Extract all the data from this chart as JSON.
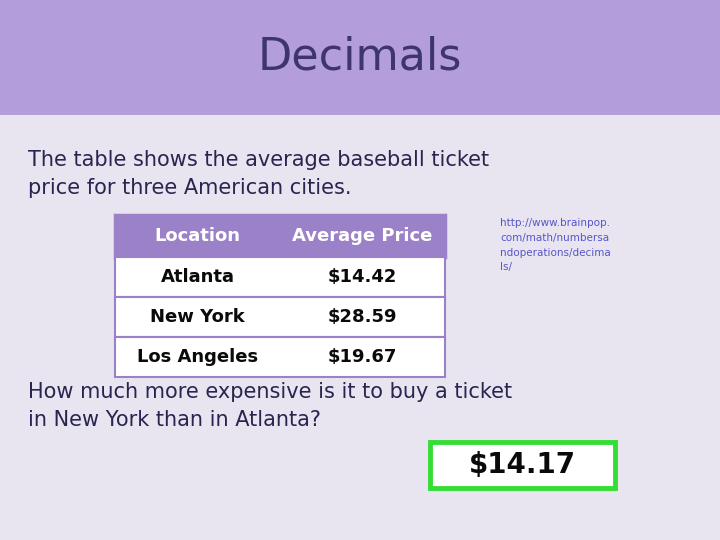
{
  "title": "Decimals",
  "title_color": "#3d3470",
  "header_bg": "#b39ddb",
  "slide_bg": "#e8e5f0",
  "intro_text": "The table shows the average baseball ticket\nprice for three American cities.",
  "intro_color": "#2a2550",
  "table_header": [
    "Location",
    "Average Price"
  ],
  "table_rows": [
    [
      "Atlanta",
      "$14.42"
    ],
    [
      "New York",
      "$28.59"
    ],
    [
      "Los Angeles",
      "$19.67"
    ]
  ],
  "table_header_bg": "#9b82c8",
  "table_row_bg": "#ffffff",
  "table_border_color": "#9b82c8",
  "table_text_color": "#0a0a0a",
  "table_header_text_color": "#ffffff",
  "url_text": "http://www.brainpop.\ncom/math/numbersa\nndoperations/decima\nls/",
  "url_color": "#5555cc",
  "question_text": "How much more expensive is it to buy a ticket\nin New York than in Atlanta?",
  "question_color": "#2a2550",
  "answer_text": "$14.17",
  "answer_color": "#0a0a0a",
  "answer_box_border": "#33dd33",
  "answer_box_bg": "#ffffff",
  "title_fontsize": 32,
  "intro_fontsize": 15,
  "table_header_fontsize": 13,
  "table_row_fontsize": 13,
  "url_fontsize": 7.5,
  "question_fontsize": 15,
  "answer_fontsize": 20
}
